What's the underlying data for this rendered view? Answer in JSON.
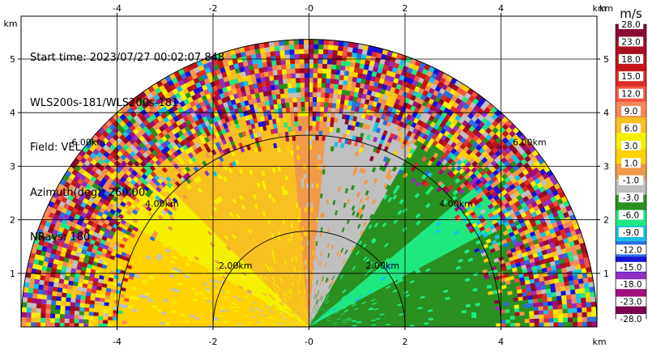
{
  "chart_data": {
    "type": "heatmap",
    "subtype": "ppi-radar-sector",
    "info_lines": [
      "Start time: 2023/07/27 00:02:07.848",
      "WLS200s-181/WLS200s-181",
      "Field: VEL",
      "Azimuth(deg): 260.00",
      "NRays: 180"
    ],
    "xlim": [
      -6,
      6
    ],
    "ylim": [
      0,
      5.8
    ],
    "x_unit_label": "km",
    "y_unit_label": "km",
    "x_ticks": [
      -4,
      -2,
      0,
      2,
      4
    ],
    "x_tick_labels": [
      "-4",
      "-2",
      "-0",
      "2",
      "4"
    ],
    "y_ticks": [
      1,
      2,
      3,
      4,
      5
    ],
    "y_tick_labels": [
      "1",
      "2",
      "3",
      "4",
      "5"
    ],
    "grid": true,
    "range_rings": [
      {
        "radius_km": 2,
        "label": "2.00km"
      },
      {
        "radius_km": 4,
        "label": "4.00km"
      },
      {
        "radius_km": 6,
        "label": "6.00km"
      }
    ],
    "max_range_km": 6,
    "colorbar": {
      "unit": "m/s",
      "tick_labels": [
        "28.0",
        "23.0",
        "18.0",
        "15.0",
        "12.0",
        "9.0",
        "6.0",
        "3.0",
        "1.0",
        "-1.0",
        "-3.0",
        "-6.0",
        "-9.0",
        "-12.0",
        "-15.0",
        "-18.0",
        "-23.0",
        "-28.0"
      ],
      "colors": [
        "#8b0a32",
        "#a80d20",
        "#c41616",
        "#dd2c28",
        "#f25440",
        "#f5885a",
        "#f8c020",
        "#f6f000",
        "#ffd200",
        "#f09a4a",
        "#c0c0c0",
        "#2a9020",
        "#20e880",
        "#18c0e8",
        "#2a6ee0",
        "#1a10d8",
        "#9030c0",
        "#a0107a",
        "#7a0050"
      ]
    },
    "velocity_sectors": [
      {
        "az_from_deg": -90,
        "az_to_deg": -60,
        "value": 1.0
      },
      {
        "az_from_deg": -60,
        "az_to_deg": -45,
        "value": 3.0
      },
      {
        "az_from_deg": -45,
        "az_to_deg": -5,
        "value": 6.0
      },
      {
        "az_from_deg": -5,
        "az_to_deg": 5,
        "value": 0.0
      },
      {
        "az_from_deg": 5,
        "az_to_deg": 30,
        "value": -3.0
      },
      {
        "az_from_deg": 30,
        "az_to_deg": 50,
        "value": -6.0
      },
      {
        "az_from_deg": 50,
        "az_to_deg": 62,
        "value": -9.0
      },
      {
        "az_from_deg": 62,
        "az_to_deg": 90,
        "value": -6.0
      }
    ],
    "noise_from_range_km": 4.6
  }
}
